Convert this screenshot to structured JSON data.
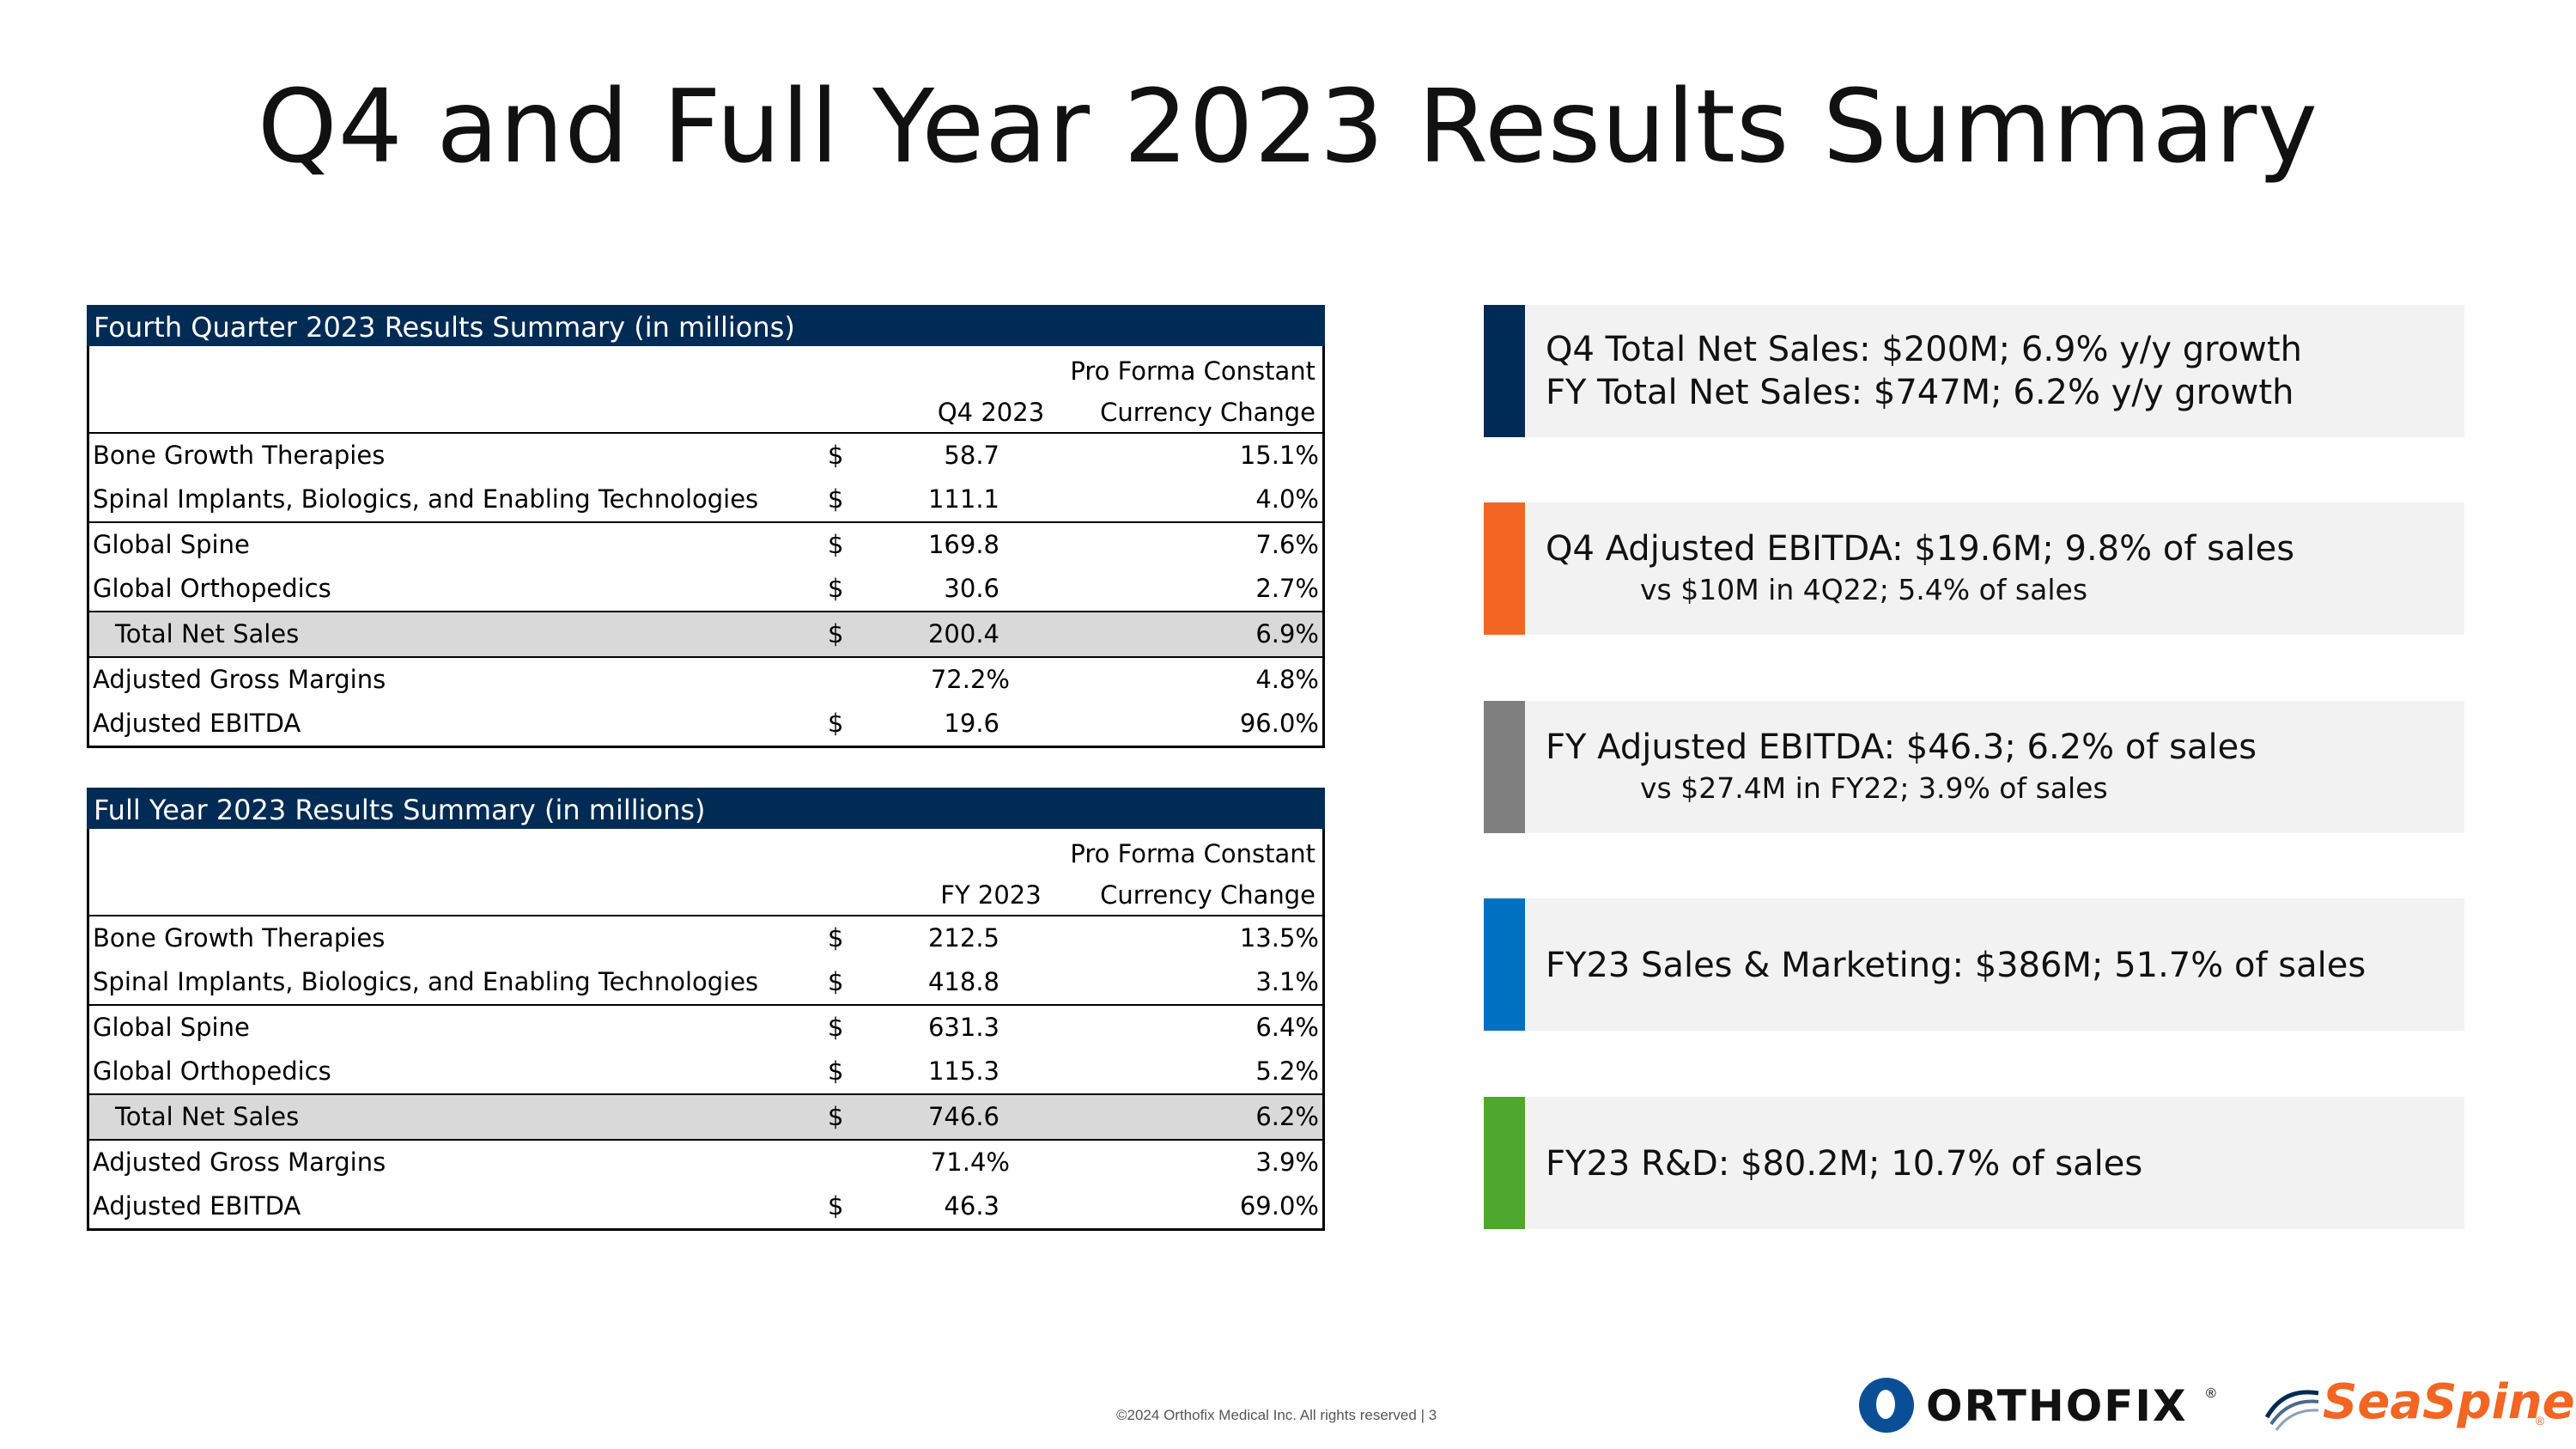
{
  "page": {
    "title": "Q4 and Full Year 2023 Results Summary",
    "footer": "©2024 Orthofix Medical Inc. All rights reserved  |  3"
  },
  "q4_table": {
    "header": "Fourth Quarter 2023 Results Summary (in millions)",
    "col1": "Q4 2023",
    "col2_line1": "Pro Forma Constant",
    "col2_line2": "Currency Change",
    "rows": [
      {
        "label": "Bone Growth Therapies",
        "dollar": "$",
        "value": "58.7",
        "change": "15.1%"
      },
      {
        "label": "Spinal Implants, Biologics, and Enabling Technologies",
        "dollar": "$",
        "value": "111.1",
        "change": "4.0%"
      },
      {
        "label": "Global Spine",
        "dollar": "$",
        "value": "169.8",
        "change": "7.6%"
      },
      {
        "label": "Global Orthopedics",
        "dollar": "$",
        "value": "30.6",
        "change": "2.7%"
      },
      {
        "label": "Total Net Sales",
        "dollar": "$",
        "value": "200.4",
        "change": "6.9%"
      },
      {
        "label": "Adjusted Gross Margins",
        "dollar": "",
        "value": "72.2%",
        "change": "4.8%"
      },
      {
        "label": "Adjusted EBITDA",
        "dollar": "$",
        "value": "19.6",
        "change": "96.0%"
      }
    ]
  },
  "fy_table": {
    "header": "Full Year 2023 Results Summary (in millions)",
    "col1": "FY 2023",
    "col2_line1": "Pro Forma Constant",
    "col2_line2": "Currency Change",
    "rows": [
      {
        "label": "Bone Growth Therapies",
        "dollar": "$",
        "value": "212.5",
        "change": "13.5%"
      },
      {
        "label": "Spinal Implants, Biologics, and Enabling Technologies",
        "dollar": "$",
        "value": "418.8",
        "change": "3.1%"
      },
      {
        "label": "Global Spine",
        "dollar": "$",
        "value": "631.3",
        "change": "6.4%"
      },
      {
        "label": "Global Orthopedics",
        "dollar": "$",
        "value": "115.3",
        "change": "5.2%"
      },
      {
        "label": "Total Net Sales",
        "dollar": "$",
        "value": "746.6",
        "change": "6.2%"
      },
      {
        "label": "Adjusted Gross Margins",
        "dollar": "",
        "value": "71.4%",
        "change": "3.9%"
      },
      {
        "label": "Adjusted EBITDA",
        "dollar": "$",
        "value": "46.3",
        "change": "69.0%"
      }
    ]
  },
  "cards": [
    {
      "color": "#002b54",
      "line1": "Q4 Total Net Sales: $200M; 6.9% y/y growth",
      "line2": "FY Total Net Sales: $747M; 6.2% y/y growth",
      "sub": ""
    },
    {
      "color": "#f26522",
      "line1": "Q4 Adjusted EBITDA: $19.6M; 9.8% of sales",
      "line2": "",
      "sub": "vs $10M in 4Q22; 5.4% of sales"
    },
    {
      "color": "#7f7f7f",
      "line1": "FY Adjusted EBITDA: $46.3; 6.2% of sales",
      "line2": "",
      "sub": "vs $27.4M in FY22; 3.9% of sales"
    },
    {
      "color": "#0070c0",
      "line1": "FY23 Sales & Marketing: $386M; 51.7% of sales",
      "line2": "",
      "sub": ""
    },
    {
      "color": "#4ea72e",
      "line1": "FY23 R&D: $80.2M; 10.7% of sales",
      "line2": "",
      "sub": ""
    }
  ],
  "logos": {
    "orthofix": "ORTHOFIX",
    "orthofix_mark": "®",
    "seaspine": "SeaSpine",
    "seaspine_mark": "®"
  }
}
